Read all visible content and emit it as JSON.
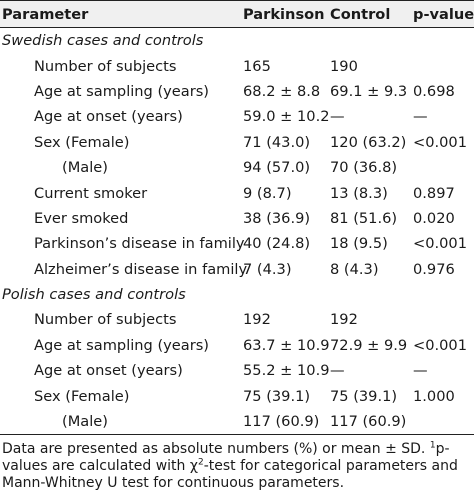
{
  "header": {
    "parameter": "Parameter",
    "parkinson": "Parkinson",
    "control": "Control",
    "pvalue": "p-value",
    "pvalue_sup": "1"
  },
  "sections": [
    {
      "title": "Swedish cases and controls",
      "rows": [
        {
          "label": "Number of subjects",
          "parkinson": "165",
          "control": "190",
          "p": ""
        },
        {
          "label": "Age at sampling (years)",
          "parkinson": "68.2 ± 8.8",
          "control": "69.1 ± 9.3",
          "p": "0.698"
        },
        {
          "label": "Age at onset (years)",
          "parkinson": "59.0 ± 10.2",
          "control": "—",
          "p": "—"
        },
        {
          "label": "Sex (Female)",
          "parkinson": "71 (43.0)",
          "control": "120 (63.2)",
          "p": "<0.001"
        },
        {
          "label": "(Male)",
          "parkinson": "94 (57.0)",
          "control": "70 (36.8)",
          "p": ""
        },
        {
          "label": "Current smoker",
          "parkinson": "9 (8.7)",
          "control": "13 (8.3)",
          "p": "0.897"
        },
        {
          "label": "Ever smoked",
          "parkinson": "38 (36.9)",
          "control": "81 (51.6)",
          "p": "0.020"
        },
        {
          "label": "Parkinson’s disease in family",
          "parkinson": "40 (24.8)",
          "control": "18 (9.5)",
          "p": "<0.001"
        },
        {
          "label": "Alzheimer’s disease in family",
          "parkinson": "7 (4.3)",
          "control": "8 (4.3)",
          "p": "0.976"
        }
      ]
    },
    {
      "title": "Polish cases and controls",
      "rows": [
        {
          "label": "Number of subjects",
          "parkinson": "192",
          "control": "192",
          "p": ""
        },
        {
          "label": "Age at sampling (years)",
          "parkinson": "63.7 ± 10.9",
          "control": "72.9 ± 9.9",
          "p": "<0.001"
        },
        {
          "label": "Age at onset (years)",
          "parkinson": "55.2 ± 10.9",
          "control": "—",
          "p": "—"
        },
        {
          "label": "Sex (Female)",
          "parkinson": "75 (39.1)",
          "control": "75 (39.1)",
          "p": "1.000"
        },
        {
          "label": "(Male)",
          "parkinson": "117 (60.9)",
          "control": "117 (60.9)",
          "p": ""
        }
      ]
    }
  ],
  "footnote": {
    "part1": "Data are presented as absolute numbers (%) or mean ± SD. ",
    "sup1": "1",
    "part2": "p-values are calculated with χ",
    "sup2": "2",
    "part3": "-test for categorical parameters and Mann-Whitney U test for continuous parameters."
  }
}
